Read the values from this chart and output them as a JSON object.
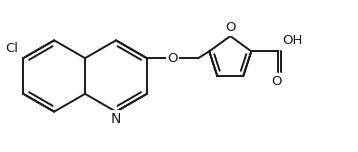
{
  "background": "#ffffff",
  "line_color": "#1a1a1a",
  "line_width": 1.4,
  "font_size": 9.5,
  "figsize": [
    3.58,
    1.52
  ],
  "dpi": 100,
  "xlim": [
    0,
    10.0
  ],
  "ylim": [
    0,
    4.2
  ]
}
